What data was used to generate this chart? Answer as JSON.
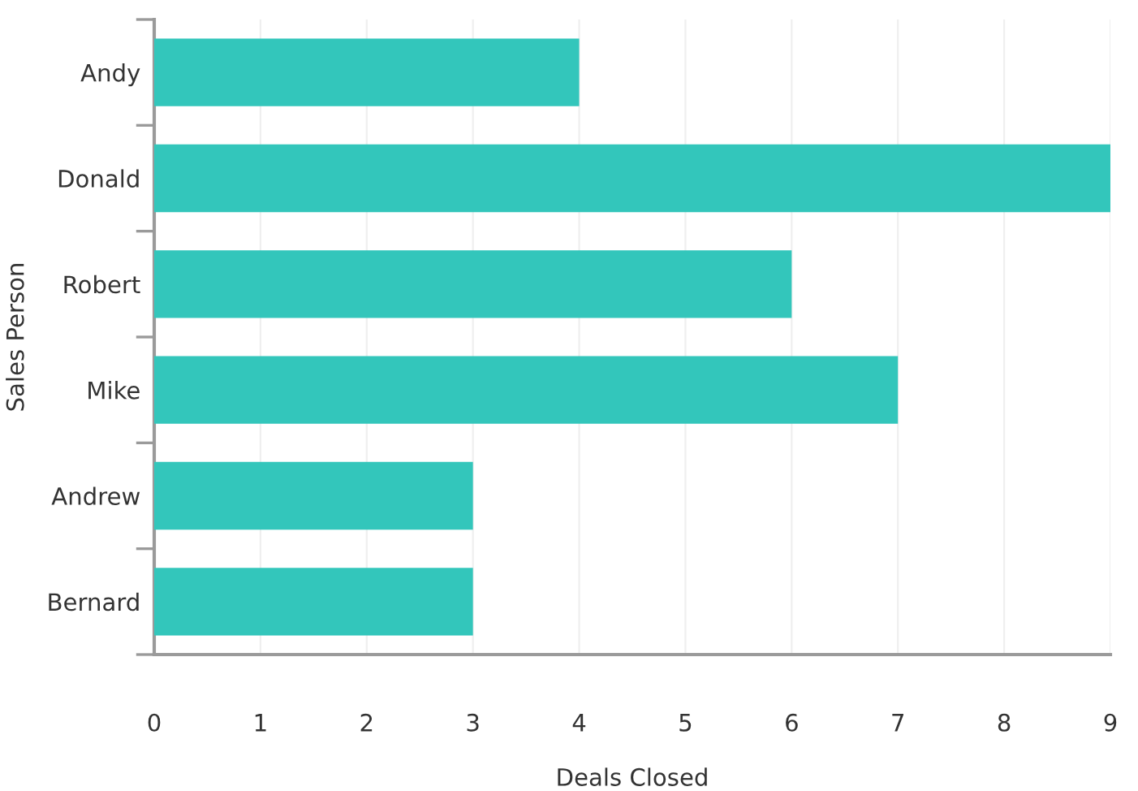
{
  "chart_data": {
    "type": "bar",
    "orientation": "horizontal",
    "xlabel": "Deals Closed",
    "ylabel": "Sales Person",
    "categories": [
      "Andy",
      "Donald",
      "Robert",
      "Mike",
      "Andrew",
      "Bernard"
    ],
    "values": [
      4,
      9,
      6,
      7,
      3,
      3
    ],
    "color": "#33c6bb",
    "xlim": [
      0,
      9
    ],
    "xticks": [
      0,
      1,
      2,
      3,
      4,
      5,
      6,
      7,
      8,
      9
    ],
    "grid": "x",
    "legend": false
  }
}
